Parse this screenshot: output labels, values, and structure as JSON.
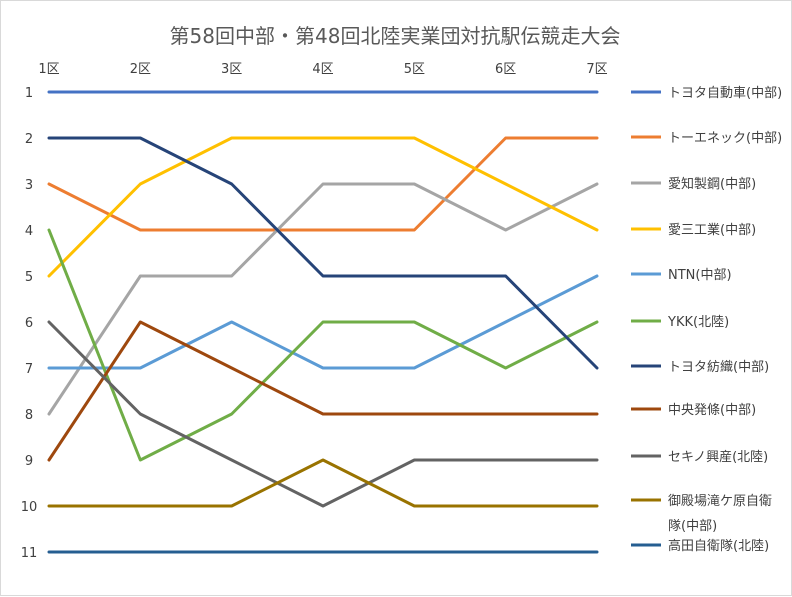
{
  "chart_data": {
    "type": "line",
    "title": "第58回中部・第48回北陸実業団対抗駅伝競走大会",
    "xlabel": "",
    "ylabel": "",
    "categories": [
      "1区",
      "2区",
      "3区",
      "4区",
      "5区",
      "6区",
      "7区"
    ],
    "y_ticks": [
      "1",
      "2",
      "3",
      "4",
      "5",
      "6",
      "7",
      "8",
      "9",
      "10",
      "11"
    ],
    "ylim": [
      1,
      11
    ],
    "y_reversed": true,
    "x_axis_position": "top",
    "grid": false,
    "legend": "right",
    "series": [
      {
        "name": "トヨタ自動車(中部)",
        "color": "#4472c4",
        "values": [
          1,
          1,
          1,
          1,
          1,
          1,
          1
        ]
      },
      {
        "name": "トーエネック(中部)",
        "color": "#ed7d31",
        "values": [
          3,
          4,
          4,
          4,
          4,
          2,
          2
        ]
      },
      {
        "name": "愛知製鋼(中部)",
        "color": "#a5a5a5",
        "values": [
          8,
          5,
          5,
          3,
          3,
          4,
          3
        ]
      },
      {
        "name": "愛三工業(中部)",
        "color": "#ffc000",
        "values": [
          5,
          3,
          2,
          2,
          2,
          3,
          4
        ]
      },
      {
        "name": "NTN(中部)",
        "color": "#5b9bd5",
        "values": [
          7,
          7,
          6,
          7,
          7,
          6,
          5
        ]
      },
      {
        "name": "YKK(北陸)",
        "color": "#70ad47",
        "values": [
          4,
          9,
          8,
          6,
          6,
          7,
          6
        ]
      },
      {
        "name": "トヨタ紡織(中部)",
        "color": "#264478",
        "values": [
          2,
          2,
          3,
          5,
          5,
          5,
          7
        ]
      },
      {
        "name": "中央発條(中部)",
        "color": "#9e480e",
        "values": [
          9,
          6,
          7,
          8,
          8,
          8,
          8
        ]
      },
      {
        "name": "セキノ興産(北陸)",
        "color": "#636363",
        "values": [
          6,
          8,
          9,
          10,
          9,
          9,
          9
        ]
      },
      {
        "name": "御殿場滝ヶ原自衛隊(中部)",
        "name_lines": [
          "御殿場滝ケ原自衛",
          "隊(中部)"
        ],
        "color": "#997300",
        "values": [
          10,
          10,
          10,
          9,
          10,
          10,
          10
        ]
      },
      {
        "name": "高田自衛隊(北陸)",
        "color": "#255e91",
        "values": [
          11,
          11,
          11,
          11,
          11,
          11,
          11
        ]
      }
    ]
  }
}
